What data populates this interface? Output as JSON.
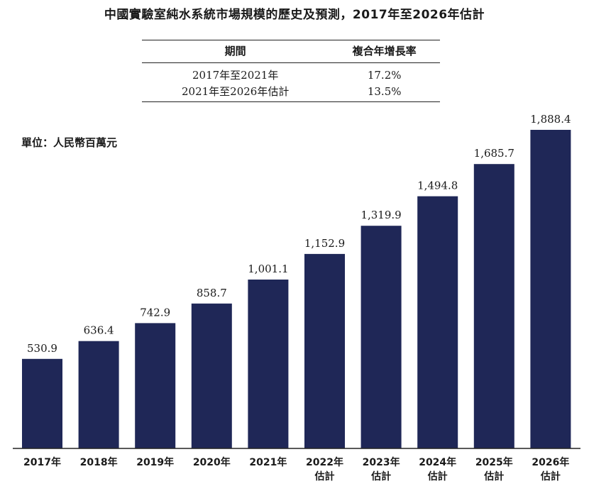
{
  "title": "中國實驗室純水系統市場規模的歷史及預測，2017年至2026年估計",
  "cagr_table": {
    "header_period": "期間",
    "header_cagr": "複合年增長率",
    "rows": [
      {
        "period": "2017年至2021年",
        "cagr": "17.2%"
      },
      {
        "period": "2021年至2026年估計",
        "cagr": "13.5%"
      }
    ]
  },
  "unit_label": "單位：人民幣百萬元",
  "chart_data": {
    "type": "bar",
    "categories": [
      "2017年",
      "2018年",
      "2019年",
      "2020年",
      "2021年",
      "2022年\n估計",
      "2023年\n估計",
      "2024年\n估計",
      "2025年\n估計",
      "2026年\n估計"
    ],
    "values": [
      530.9,
      636.4,
      742.9,
      858.7,
      1001.1,
      1152.9,
      1319.9,
      1494.8,
      1685.7,
      1888.4
    ],
    "value_labels": [
      "530.9",
      "636.4",
      "742.9",
      "858.7",
      "1,001.1",
      "1,152.9",
      "1,319.9",
      "1,494.8",
      "1,685.7",
      "1,888.4"
    ],
    "ylim": [
      0,
      1888.4
    ],
    "bar_color": "#1f2757",
    "grid": false
  }
}
